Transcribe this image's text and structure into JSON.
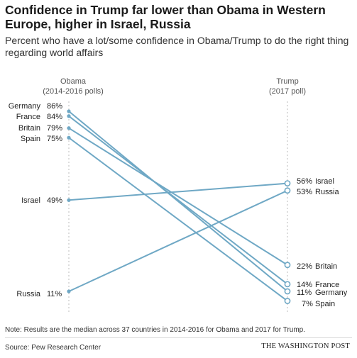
{
  "chart_data": {
    "type": "slope",
    "title": "Confidence in Trump far lower than Obama in Western Europe, higher in Israel, Russia",
    "subtitle": "Percent who have a lot/some confidence in Obama/Trump to do the right thing regarding world affairs",
    "left_column": {
      "name": "Obama",
      "period": "(2014-2016 polls)"
    },
    "right_column": {
      "name": "Trump",
      "period": "(2017 poll)"
    },
    "series": [
      {
        "country": "Germany",
        "obama": 86,
        "trump": 11,
        "obama_label": "86%",
        "trump_label": "11%"
      },
      {
        "country": "France",
        "obama": 84,
        "trump": 14,
        "obama_label": "84%",
        "trump_label": "14%"
      },
      {
        "country": "Britain",
        "obama": 79,
        "trump": 22,
        "obama_label": "79%",
        "trump_label": "22%"
      },
      {
        "country": "Spain",
        "obama": 75,
        "trump": 7,
        "obama_label": "75%",
        "trump_label": "7%"
      },
      {
        "country": "Israel",
        "obama": 49,
        "trump": 56,
        "obama_label": "49%",
        "trump_label": "56%"
      },
      {
        "country": "Russia",
        "obama": 11,
        "trump": 53,
        "obama_label": "11%",
        "trump_label": "53%"
      }
    ],
    "line_color": "#6fa8c5",
    "axis_color": "#bbbbbb"
  },
  "footer": {
    "note": "Note: Results are the median across 37 countries in 2014-2016 for Obama and 2017 for Trump.",
    "source": "Source: Pew Research Center",
    "brand": "THE WASHINGTON POST"
  }
}
